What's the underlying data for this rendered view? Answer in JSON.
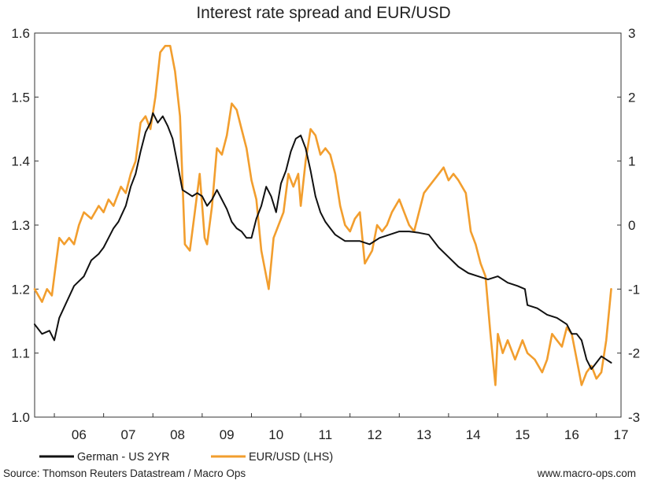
{
  "chart_data": {
    "type": "line",
    "title": "Interest rate spread and EUR/USD",
    "xlabel": "",
    "ylabel": "",
    "x_range": [
      2005.6,
      2017.5
    ],
    "x_ticks": [
      {
        "label": "06",
        "x": 2006.0
      },
      {
        "label": "07",
        "x": 2007.0
      },
      {
        "label": "08",
        "x": 2008.0
      },
      {
        "label": "09",
        "x": 2009.0
      },
      {
        "label": "10",
        "x": 2010.0
      },
      {
        "label": "11",
        "x": 2011.0
      },
      {
        "label": "12",
        "x": 2012.0
      },
      {
        "label": "13",
        "x": 2013.0
      },
      {
        "label": "14",
        "x": 2014.0
      },
      {
        "label": "15",
        "x": 2015.0
      },
      {
        "label": "16",
        "x": 2016.0
      },
      {
        "label": "17",
        "x": 2017.0
      }
    ],
    "y_left": {
      "ylim": [
        1.0,
        1.6
      ],
      "ticks": [
        "1.0",
        "1.1",
        "1.2",
        "1.3",
        "1.4",
        "1.5",
        "1.6"
      ]
    },
    "y_right": {
      "ylim": [
        -3,
        3
      ],
      "ticks": [
        "-3",
        "-2",
        "-1",
        "0",
        "1",
        "2",
        "3"
      ]
    },
    "grid": false,
    "legend_position": "bottom",
    "series": [
      {
        "name": "German - US 2YR",
        "axis": "right",
        "color": "#111111",
        "x": [
          2005.6,
          2005.75,
          2005.9,
          2006.0,
          2006.1,
          2006.25,
          2006.4,
          2006.6,
          2006.75,
          2006.9,
          2007.0,
          2007.1,
          2007.2,
          2007.3,
          2007.45,
          2007.55,
          2007.65,
          2007.75,
          2007.85,
          2007.95,
          2008.0,
          2008.1,
          2008.2,
          2008.3,
          2008.4,
          2008.5,
          2008.6,
          2008.7,
          2008.8,
          2008.9,
          2009.0,
          2009.1,
          2009.2,
          2009.3,
          2009.4,
          2009.5,
          2009.6,
          2009.7,
          2009.8,
          2009.9,
          2010.0,
          2010.1,
          2010.2,
          2010.3,
          2010.4,
          2010.5,
          2010.6,
          2010.7,
          2010.8,
          2010.9,
          2011.0,
          2011.1,
          2011.2,
          2011.3,
          2011.4,
          2011.5,
          2011.6,
          2011.7,
          2011.8,
          2011.9,
          2012.0,
          2012.2,
          2012.4,
          2012.6,
          2012.8,
          2013.0,
          2013.2,
          2013.4,
          2013.6,
          2013.8,
          2014.0,
          2014.2,
          2014.4,
          2014.6,
          2014.8,
          2015.0,
          2015.2,
          2015.4,
          2015.55,
          2015.6,
          2015.8,
          2016.0,
          2016.2,
          2016.4,
          2016.5,
          2016.6,
          2016.7,
          2016.8,
          2016.9,
          2017.0,
          2017.1,
          2017.2,
          2017.3
        ],
        "values": [
          -1.55,
          -1.7,
          -1.65,
          -1.8,
          -1.45,
          -1.2,
          -0.95,
          -0.8,
          -0.55,
          -0.45,
          -0.35,
          -0.2,
          -0.05,
          0.05,
          0.3,
          0.6,
          0.8,
          1.15,
          1.45,
          1.6,
          1.75,
          1.6,
          1.7,
          1.55,
          1.35,
          0.95,
          0.55,
          0.5,
          0.45,
          0.5,
          0.45,
          0.3,
          0.4,
          0.55,
          0.4,
          0.25,
          0.05,
          -0.05,
          -0.1,
          -0.2,
          -0.2,
          0.1,
          0.3,
          0.6,
          0.45,
          0.2,
          0.65,
          0.85,
          1.15,
          1.35,
          1.4,
          1.2,
          0.85,
          0.45,
          0.2,
          0.05,
          -0.05,
          -0.15,
          -0.2,
          -0.25,
          -0.25,
          -0.25,
          -0.3,
          -0.2,
          -0.15,
          -0.1,
          -0.1,
          -0.12,
          -0.15,
          -0.35,
          -0.5,
          -0.65,
          -0.75,
          -0.8,
          -0.85,
          -0.8,
          -0.9,
          -0.95,
          -1.0,
          -1.25,
          -1.3,
          -1.4,
          -1.45,
          -1.55,
          -1.7,
          -1.7,
          -1.8,
          -2.1,
          -2.25,
          -2.15,
          -2.05,
          -2.1,
          -2.15
        ]
      },
      {
        "name": "EUR/USD (LHS)",
        "axis": "left",
        "color": "#f29e2e",
        "x": [
          2005.6,
          2005.75,
          2005.85,
          2005.95,
          2006.0,
          2006.1,
          2006.2,
          2006.3,
          2006.4,
          2006.5,
          2006.6,
          2006.75,
          2006.9,
          2007.0,
          2007.1,
          2007.2,
          2007.35,
          2007.45,
          2007.55,
          2007.65,
          2007.75,
          2007.85,
          2007.95,
          2008.05,
          2008.15,
          2008.25,
          2008.35,
          2008.45,
          2008.55,
          2008.65,
          2008.75,
          2008.85,
          2008.95,
          2009.0,
          2009.05,
          2009.1,
          2009.2,
          2009.3,
          2009.4,
          2009.5,
          2009.6,
          2009.7,
          2009.8,
          2009.9,
          2010.0,
          2010.1,
          2010.2,
          2010.35,
          2010.45,
          2010.55,
          2010.65,
          2010.75,
          2010.85,
          2010.95,
          2011.0,
          2011.1,
          2011.2,
          2011.3,
          2011.4,
          2011.5,
          2011.6,
          2011.7,
          2011.8,
          2011.9,
          2012.0,
          2012.1,
          2012.2,
          2012.3,
          2012.45,
          2012.55,
          2012.65,
          2012.75,
          2012.85,
          2013.0,
          2013.1,
          2013.2,
          2013.3,
          2013.4,
          2013.5,
          2013.6,
          2013.7,
          2013.8,
          2013.9,
          2014.0,
          2014.1,
          2014.2,
          2014.35,
          2014.45,
          2014.55,
          2014.65,
          2014.75,
          2014.85,
          2014.95,
          2015.0,
          2015.1,
          2015.2,
          2015.35,
          2015.5,
          2015.6,
          2015.75,
          2015.9,
          2016.0,
          2016.1,
          2016.2,
          2016.3,
          2016.4,
          2016.5,
          2016.6,
          2016.7,
          2016.8,
          2016.9,
          2017.0,
          2017.1,
          2017.2,
          2017.3
        ],
        "values": [
          1.2,
          1.18,
          1.2,
          1.19,
          1.22,
          1.28,
          1.27,
          1.28,
          1.27,
          1.3,
          1.32,
          1.31,
          1.33,
          1.32,
          1.34,
          1.33,
          1.36,
          1.35,
          1.38,
          1.4,
          1.46,
          1.47,
          1.45,
          1.5,
          1.57,
          1.58,
          1.58,
          1.54,
          1.47,
          1.27,
          1.26,
          1.32,
          1.38,
          1.33,
          1.28,
          1.27,
          1.33,
          1.42,
          1.41,
          1.44,
          1.49,
          1.48,
          1.45,
          1.42,
          1.37,
          1.34,
          1.26,
          1.2,
          1.28,
          1.3,
          1.32,
          1.38,
          1.36,
          1.38,
          1.33,
          1.4,
          1.45,
          1.44,
          1.41,
          1.42,
          1.41,
          1.38,
          1.33,
          1.3,
          1.29,
          1.31,
          1.32,
          1.24,
          1.26,
          1.3,
          1.29,
          1.3,
          1.32,
          1.34,
          1.32,
          1.3,
          1.29,
          1.32,
          1.35,
          1.36,
          1.37,
          1.38,
          1.39,
          1.37,
          1.38,
          1.37,
          1.35,
          1.29,
          1.27,
          1.24,
          1.22,
          1.13,
          1.05,
          1.13,
          1.1,
          1.12,
          1.09,
          1.12,
          1.1,
          1.09,
          1.07,
          1.09,
          1.13,
          1.12,
          1.11,
          1.14,
          1.13,
          1.09,
          1.05,
          1.07,
          1.08,
          1.06,
          1.07,
          1.12,
          1.2
        ]
      }
    ]
  },
  "footer": {
    "source": "Source: Thomson Reuters Datastream / Macro Ops",
    "website": "www.macro-ops.com"
  }
}
